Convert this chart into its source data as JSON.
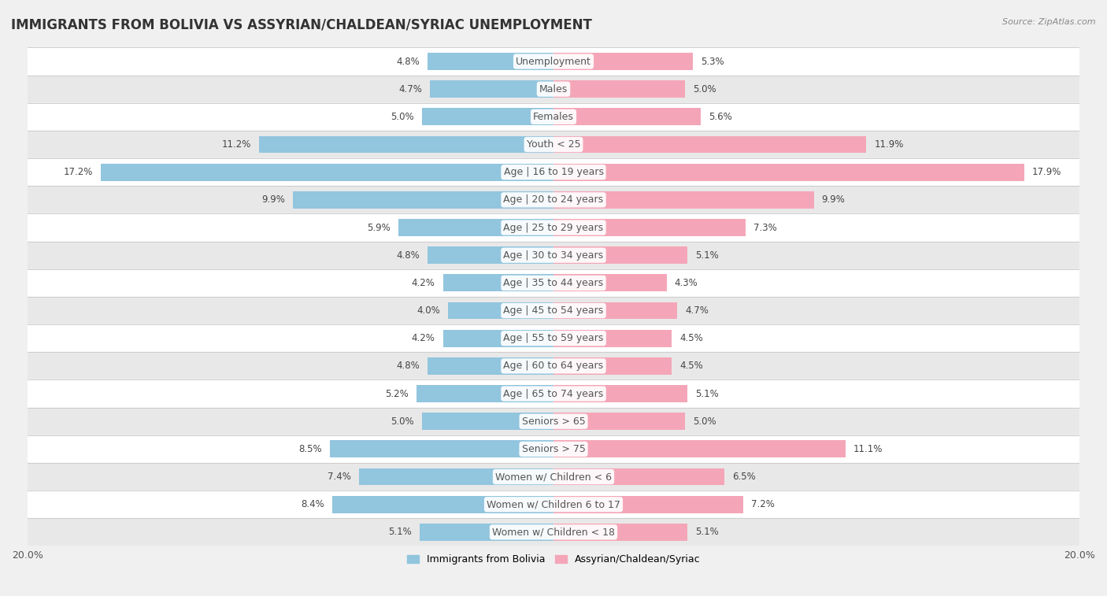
{
  "title": "IMMIGRANTS FROM BOLIVIA VS ASSYRIAN/CHALDEAN/SYRIAC UNEMPLOYMENT",
  "source": "Source: ZipAtlas.com",
  "categories": [
    "Unemployment",
    "Males",
    "Females",
    "Youth < 25",
    "Age | 16 to 19 years",
    "Age | 20 to 24 years",
    "Age | 25 to 29 years",
    "Age | 30 to 34 years",
    "Age | 35 to 44 years",
    "Age | 45 to 54 years",
    "Age | 55 to 59 years",
    "Age | 60 to 64 years",
    "Age | 65 to 74 years",
    "Seniors > 65",
    "Seniors > 75",
    "Women w/ Children < 6",
    "Women w/ Children 6 to 17",
    "Women w/ Children < 18"
  ],
  "bolivia_values": [
    4.8,
    4.7,
    5.0,
    11.2,
    17.2,
    9.9,
    5.9,
    4.8,
    4.2,
    4.0,
    4.2,
    4.8,
    5.2,
    5.0,
    8.5,
    7.4,
    8.4,
    5.1
  ],
  "assyrian_values": [
    5.3,
    5.0,
    5.6,
    11.9,
    17.9,
    9.9,
    7.3,
    5.1,
    4.3,
    4.7,
    4.5,
    4.5,
    5.1,
    5.0,
    11.1,
    6.5,
    7.2,
    5.1
  ],
  "bolivia_color": "#92c5de",
  "assyrian_color": "#f4a6b8",
  "bolivia_label": "Immigrants from Bolivia",
  "assyrian_label": "Assyrian/Chaldean/Syriac",
  "axis_max": 20.0,
  "background_color": "#f0f0f0",
  "row_colors": [
    "#ffffff",
    "#e8e8e8"
  ],
  "title_fontsize": 12,
  "label_fontsize": 9,
  "value_fontsize": 8.5
}
